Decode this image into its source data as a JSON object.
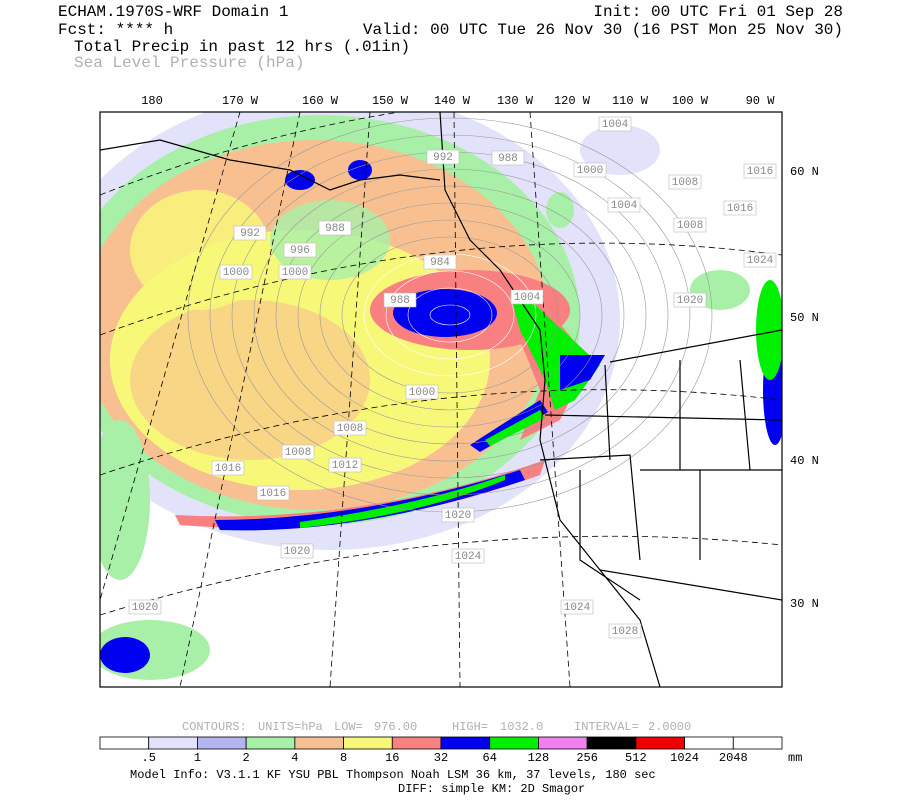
{
  "header": {
    "model": "ECHAM.1970S-WRF Domain 1",
    "init": "Init: 00 UTC Fri 01 Sep 28",
    "forecast": "Fcst: **** h",
    "valid": "Valid: 00 UTC Tue 26 Nov 30 (16 PST Mon 25 Nov 30)",
    "field1": "Total Precip in past 12 hrs (.01in)",
    "field2": "Sea Level Pressure (hPa)"
  },
  "map": {
    "longitude_labels": [
      "180",
      "170 W",
      "160 W",
      "150 W",
      "140 W",
      "130 W",
      "120 W",
      "110 W",
      "100 W",
      "90 W"
    ],
    "latitude_labels": [
      "60 N",
      "50 N",
      "40 N",
      "30 N"
    ],
    "contour_labels": [
      "1004",
      "992",
      "988",
      "1000",
      "1008",
      "1016",
      "1004",
      "1016",
      "988",
      "1008",
      "992",
      "996",
      "1024",
      "984",
      "1000",
      "1000",
      "1020",
      "988",
      "1004",
      "1000",
      "1008",
      "1008",
      "1012",
      "1016",
      "1016",
      "1020",
      "1020",
      "1024",
      "1020",
      "1024",
      "1028"
    ]
  },
  "contour_info": {
    "contours": "CONTOURS:",
    "units": "UNITS=hPa",
    "low_label": "LOW=",
    "low": "976.00",
    "high_label": "HIGH=",
    "high": "1032.0",
    "interval_label": "INTERVAL=",
    "interval": "2.0000"
  },
  "colorbar": {
    "levels": [
      ".5",
      "1",
      "2",
      "4",
      "8",
      "16",
      "32",
      "64",
      "128",
      "256",
      "512",
      "1024",
      "2048"
    ],
    "unit": "mm",
    "colors": [
      "#ffffff",
      "#e2e2fa",
      "#b4b4f0",
      "#a8f0a8",
      "#f8c090",
      "#f8f878",
      "#f88080",
      "#0000f0",
      "#00f000",
      "#f080f0",
      "#000000",
      "#f00000",
      "#ffffff",
      "#ffffff"
    ]
  },
  "footer": {
    "model_info": "Model Info: V3.1.1   KF   YSU PBL  Thompson   Noah LSM  36 km,   37 levels,  180 sec",
    "diff": "DIFF: simple KM: 2D Smagor"
  }
}
